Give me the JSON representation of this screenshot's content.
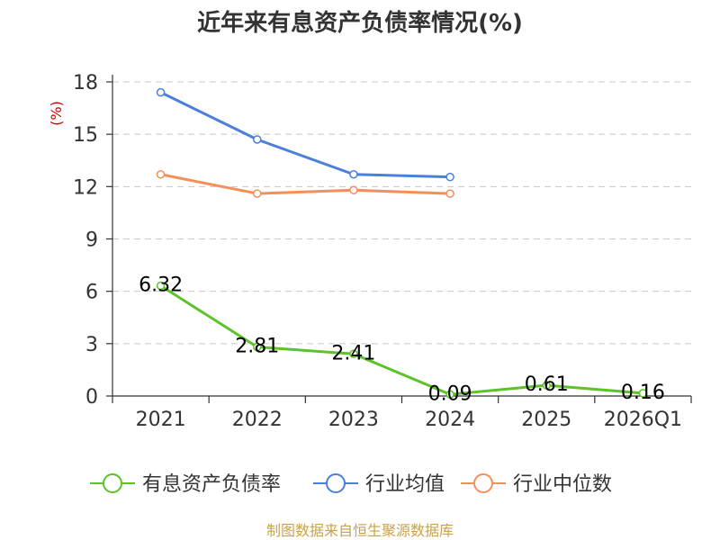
{
  "chart_data": {
    "type": "line",
    "title": "近年来有息资产负债率情况(%)",
    "ylabel": "(%)",
    "categories": [
      "2021",
      "2022",
      "2023",
      "2024",
      "2025",
      "2026Q1"
    ],
    "ylim": [
      0,
      18
    ],
    "yticks": [
      0,
      3,
      6,
      9,
      12,
      15,
      18
    ],
    "grid": true,
    "legend_position": "bottom",
    "series": [
      {
        "name": "有息资产负债率",
        "color": "#5cc328",
        "values": [
          6.32,
          2.81,
          2.41,
          0.09,
          0.61,
          0.16
        ],
        "labels": [
          "6.32",
          "2.81",
          "2.41",
          "0.09",
          "0.61",
          "0.16"
        ]
      },
      {
        "name": "行业均值",
        "color": "#4a7fdc",
        "values": [
          17.4,
          14.7,
          12.7,
          12.55,
          null,
          null
        ]
      },
      {
        "name": "行业中位数",
        "color": "#f58f5a",
        "values": [
          12.7,
          11.6,
          11.8,
          11.6,
          null,
          null
        ]
      }
    ],
    "source": "制图数据来自恒生聚源数据库"
  }
}
